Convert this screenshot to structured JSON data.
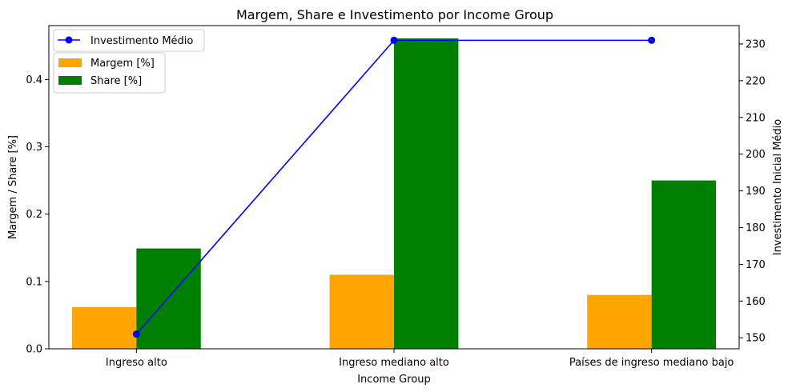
{
  "chart_data": {
    "type": "bar",
    "title": "Margem, Share e Investimento por Income Group",
    "xlabel": "Income Group",
    "ylabel": "Margem / Share [%]",
    "y2label": "Investimento Inicial Médio",
    "categories": [
      "Ingreso alto",
      "Ingreso mediano alto",
      "Países de ingreso mediano bajo"
    ],
    "series": [
      {
        "name": "Margem [%]",
        "kind": "bar",
        "axis": "left",
        "color": "#ffa500",
        "values": [
          0.062,
          0.11,
          0.08
        ]
      },
      {
        "name": "Share [%]",
        "kind": "bar",
        "axis": "left",
        "color": "#008000",
        "values": [
          0.149,
          0.461,
          0.25
        ]
      },
      {
        "name": "Investimento Médio",
        "kind": "line",
        "axis": "right",
        "color": "#0000ff",
        "marker": "circle",
        "values": [
          151,
          231,
          231
        ]
      }
    ],
    "ylim": [
      0,
      0.48
    ],
    "y2lim": [
      147,
      235
    ],
    "yticks": [
      "0.0",
      "0.1",
      "0.2",
      "0.3",
      "0.4"
    ],
    "y2ticks": [
      "150",
      "160",
      "170",
      "180",
      "190",
      "200",
      "210",
      "220",
      "230"
    ],
    "grid": false,
    "legend": {
      "line_position": "top-left",
      "bar_position": "upper-left"
    }
  }
}
